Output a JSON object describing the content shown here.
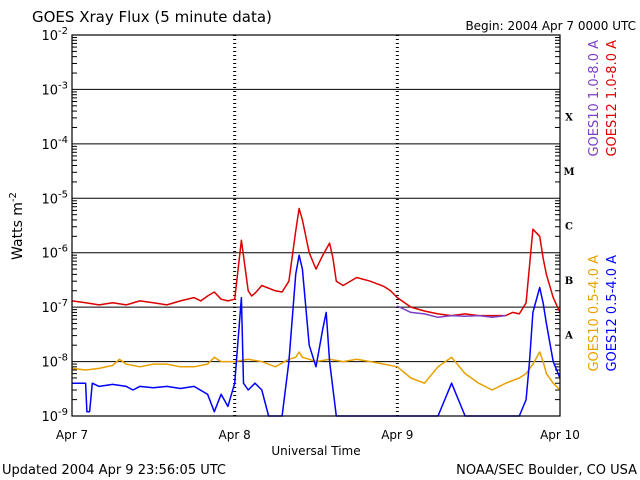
{
  "chart_data": {
    "type": "line",
    "title": "GOES Xray Flux (5 minute data)",
    "begin_label": "Begin:  2004 Apr 7 0000 UTC",
    "xlabel": "Universal Time",
    "ylabel_base": "Watts m",
    "ylabel_exp": "-2",
    "updated": "Updated 2004 Apr  9 23:56:05 UTC",
    "credit": "NOAA/SEC Boulder, CO USA",
    "x_unit": "hours since 2004 Apr 7 0000 UTC",
    "xlim": [
      0,
      72
    ],
    "x_ticks": [
      {
        "x": 0,
        "label": "Apr 7"
      },
      {
        "x": 24,
        "label": "Apr 8"
      },
      {
        "x": 48,
        "label": "Apr 9"
      },
      {
        "x": 72,
        "label": "Apr 10"
      }
    ],
    "yscale": "log",
    "ylim": [
      1e-09,
      0.01
    ],
    "y_ticks": [
      {
        "exp": -9,
        "base": "10",
        "sup": "-9"
      },
      {
        "exp": -8,
        "base": "10",
        "sup": "-8"
      },
      {
        "exp": -7,
        "base": "10",
        "sup": "-7"
      },
      {
        "exp": -6,
        "base": "10",
        "sup": "-6"
      },
      {
        "exp": -5,
        "base": "10",
        "sup": "-5"
      },
      {
        "exp": -4,
        "base": "10",
        "sup": "-4"
      },
      {
        "exp": -3,
        "base": "10",
        "sup": "-3"
      },
      {
        "exp": -2,
        "base": "10",
        "sup": "-2"
      }
    ],
    "flare_classes": [
      {
        "label": "A",
        "exp": -7.5
      },
      {
        "label": "B",
        "exp": -6.5
      },
      {
        "label": "C",
        "exp": -5.5
      },
      {
        "label": "M",
        "exp": -4.5
      },
      {
        "label": "X",
        "exp": -3.5
      }
    ],
    "legend": [
      {
        "text": "GOES12 1.0-8.0 A",
        "color": "#dd0000"
      },
      {
        "text": "GOES10 1.0-8.0 A",
        "color": "#7b3fc4"
      },
      {
        "text": "GOES12 0.5-4.0 A",
        "color": "#0000ff"
      },
      {
        "text": "GOES10 0.5-4.0 A",
        "color": "#e8a000"
      }
    ],
    "series": [
      {
        "name": "GOES12 1.0-8.0 A",
        "color": "#dd0000",
        "x": [
          0,
          2,
          4,
          6,
          8,
          10,
          12,
          14,
          16,
          18,
          19,
          20,
          21,
          22,
          23,
          24,
          25,
          26,
          26.5,
          27,
          28,
          30,
          31,
          32,
          33,
          33.5,
          34,
          35,
          36,
          37,
          38,
          38.5,
          39,
          40,
          42,
          44,
          46,
          47,
          48,
          50,
          52,
          54,
          56,
          58,
          60,
          62,
          64,
          65,
          66,
          67,
          68,
          69,
          69.5,
          70,
          71,
          72
        ],
        "y": [
          1.3e-07,
          1.2e-07,
          1.1e-07,
          1.2e-07,
          1.1e-07,
          1.3e-07,
          1.2e-07,
          1.1e-07,
          1.3e-07,
          1.5e-07,
          1.3e-07,
          1.6e-07,
          1.9e-07,
          1.4e-07,
          1.3e-07,
          1.4e-07,
          1.7e-06,
          2e-07,
          1.6e-07,
          1.8e-07,
          2.5e-07,
          2e-07,
          1.9e-07,
          3e-07,
          2.5e-06,
          6.5e-06,
          4e-06,
          1e-06,
          5e-07,
          9e-07,
          1.5e-06,
          8e-07,
          3e-07,
          2.5e-07,
          3.5e-07,
          3e-07,
          2.4e-07,
          2e-07,
          1.5e-07,
          1e-07,
          8.5e-08,
          7.5e-08,
          7e-08,
          7.5e-08,
          7e-08,
          7e-08,
          7e-08,
          8e-08,
          7.5e-08,
          1.2e-07,
          2.7e-06,
          2e-06,
          8e-07,
          4e-07,
          1.5e-07,
          8e-08
        ]
      },
      {
        "name": "GOES10 1.0-8.0 A",
        "color": "#7b3fc4",
        "x": [
          48,
          50,
          52,
          54,
          56,
          58,
          60,
          62,
          64
        ],
        "y": [
          1.05e-07,
          8e-08,
          7.5e-08,
          6.5e-08,
          7e-08,
          6.8e-08,
          7e-08,
          6.5e-08,
          7e-08
        ]
      },
      {
        "name": "GOES12 0.5-4.0 A",
        "color": "#0000ff",
        "x": [
          0,
          2,
          2.2,
          2.6,
          3,
          4,
          6,
          8,
          9,
          10,
          12,
          14,
          16,
          18,
          20,
          21,
          22,
          23,
          24,
          25,
          25.3,
          26,
          27,
          28,
          29,
          30,
          31,
          32,
          33,
          33.5,
          34,
          35,
          36,
          37,
          37.5,
          38,
          39,
          40,
          42,
          44,
          46,
          48,
          50,
          52,
          54,
          56,
          58,
          60,
          62,
          64,
          66,
          67,
          67.5,
          68,
          69,
          69.5,
          70,
          71,
          72
        ],
        "y": [
          4e-09,
          4e-09,
          1.2e-09,
          1.2e-09,
          4e-09,
          3.5e-09,
          3.8e-09,
          3.5e-09,
          3e-09,
          3.5e-09,
          3.3e-09,
          3.5e-09,
          3.2e-09,
          3.5e-09,
          2.5e-09,
          1.2e-09,
          2.5e-09,
          1.5e-09,
          4e-09,
          1.5e-07,
          4e-09,
          3e-09,
          4e-09,
          3e-09,
          1e-09,
          1e-09,
          1e-09,
          1e-08,
          4e-07,
          9e-07,
          5e-07,
          2e-08,
          8e-09,
          4e-08,
          8e-08,
          1e-08,
          1e-09,
          1e-09,
          1e-09,
          1e-09,
          1e-09,
          1e-09,
          1e-09,
          1e-09,
          1e-09,
          4e-09,
          1e-09,
          1e-09,
          1e-09,
          1e-09,
          1e-09,
          2e-09,
          1e-08,
          8e-08,
          2.3e-07,
          1.2e-07,
          5e-08,
          1e-08,
          5e-09
        ]
      },
      {
        "name": "GOES10 0.5-4.0 A",
        "color": "#e8a000",
        "x": [
          0,
          2,
          4,
          6,
          7,
          8,
          10,
          12,
          14,
          16,
          18,
          20,
          21,
          22,
          24,
          26,
          28,
          30,
          32,
          33,
          33.5,
          34,
          35,
          36,
          38,
          40,
          42,
          44,
          46,
          48,
          50,
          52,
          54,
          56,
          58,
          60,
          62,
          64,
          66,
          67,
          68,
          69,
          69.5,
          70,
          71,
          72
        ],
        "y": [
          7.5e-09,
          7e-09,
          7.5e-09,
          8.5e-09,
          1.1e-08,
          9e-09,
          8e-09,
          9e-09,
          9e-09,
          8e-09,
          8e-09,
          9e-09,
          1.2e-08,
          1e-08,
          1e-08,
          1.1e-08,
          1e-08,
          8e-09,
          1.1e-08,
          1.2e-08,
          1.5e-08,
          1.2e-08,
          1.1e-08,
          1e-08,
          1.1e-08,
          1e-08,
          1.1e-08,
          1e-08,
          9e-09,
          8e-09,
          5e-09,
          4e-09,
          8e-09,
          1.2e-08,
          6e-09,
          4e-09,
          3e-09,
          4e-09,
          5e-09,
          6e-09,
          9e-09,
          1.5e-08,
          1e-08,
          6e-09,
          4e-09,
          3e-09
        ]
      }
    ]
  }
}
